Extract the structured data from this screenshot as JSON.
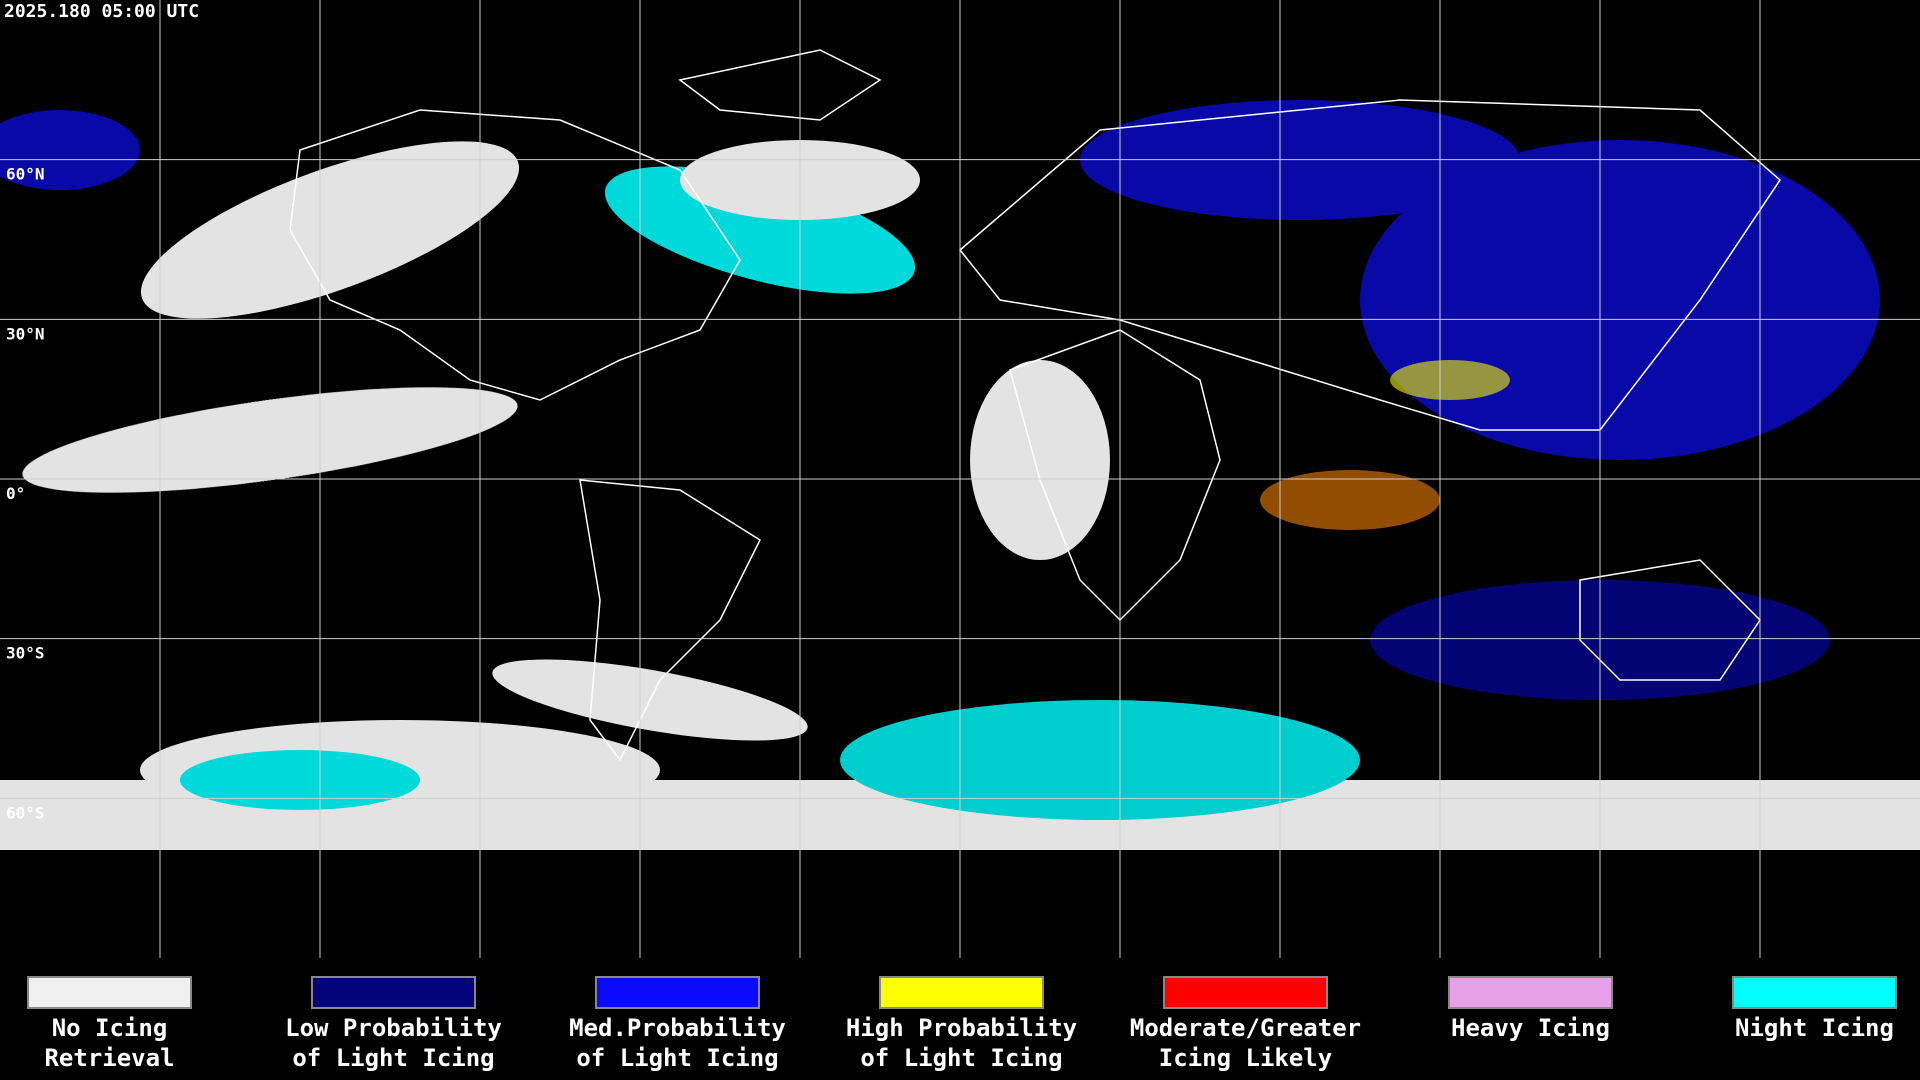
{
  "header": {
    "timestamp": "2025.180 05:00 UTC"
  },
  "latitudes": [
    {
      "value": 60,
      "label": "60°N"
    },
    {
      "value": 30,
      "label": "30°N"
    },
    {
      "value": 0,
      "label": "0°"
    },
    {
      "value": -30,
      "label": "30°S"
    },
    {
      "value": -60,
      "label": "60°S"
    }
  ],
  "legend": [
    {
      "lines": [
        "No Icing",
        "Retrieval"
      ],
      "color": "#f0f0f0"
    },
    {
      "lines": [
        "Low Probability",
        "of Light Icing"
      ],
      "color": "#04047a"
    },
    {
      "lines": [
        "Med.Probability",
        "of Light Icing"
      ],
      "color": "#0a0aff"
    },
    {
      "lines": [
        "High Probability",
        "of Light Icing"
      ],
      "color": "#ffff00"
    },
    {
      "lines": [
        "Moderate/Greater",
        "Icing Likely"
      ],
      "color": "#ff0000"
    },
    {
      "lines": [
        "Heavy Icing"
      ],
      "color": "#e8a0e8"
    },
    {
      "lines": [
        "Night Icing"
      ],
      "color": "#00ffff"
    }
  ]
}
